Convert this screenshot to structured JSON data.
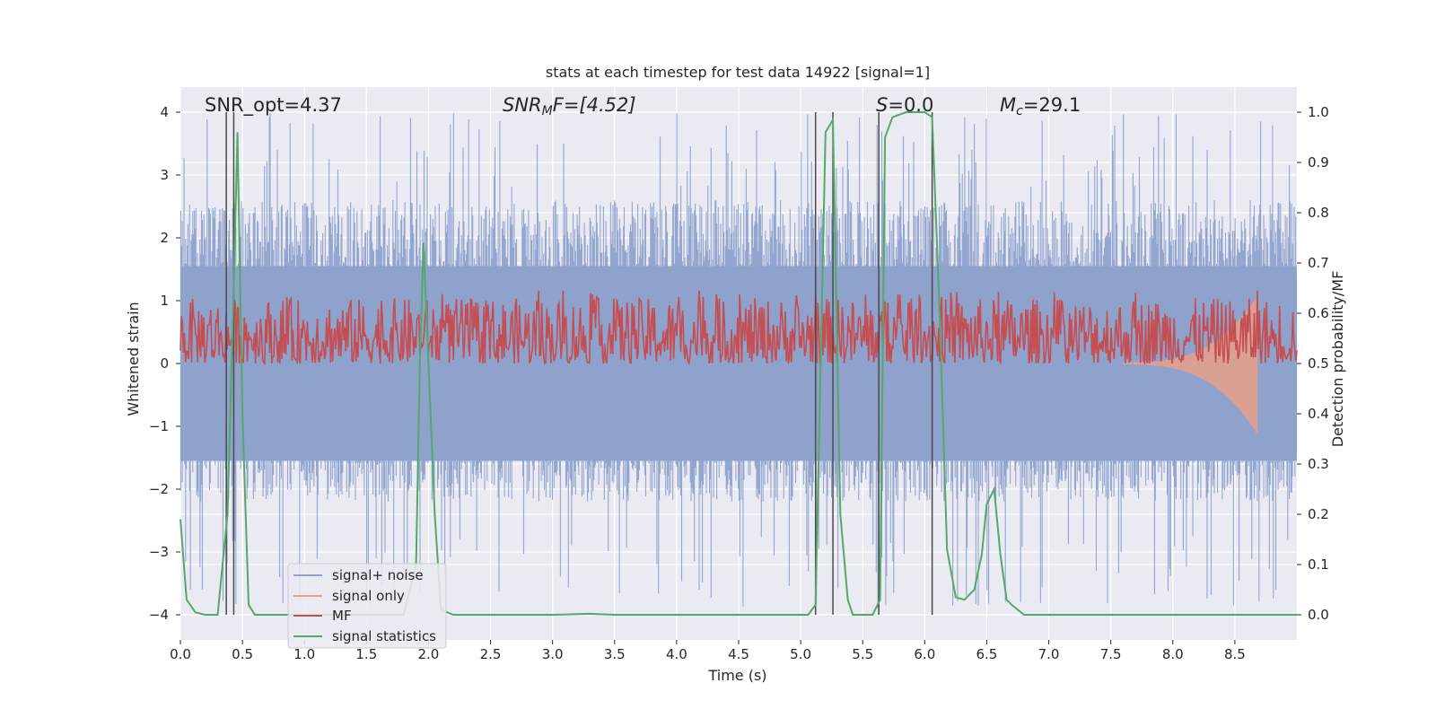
{
  "chart_data": {
    "type": "line",
    "title": "stats at each timestep for test data 14922 [signal=1]",
    "xlabel": "Time (s)",
    "ylabel_left": "Whitened strain",
    "ylabel_right": "Detection probability/MF",
    "xlim": [
      0,
      9.0
    ],
    "ylim_left": [
      -4.4,
      4.4
    ],
    "ylim_right": [
      -0.05,
      1.05
    ],
    "x_ticks": [
      "0.0",
      "0.5",
      "1.0",
      "1.5",
      "2.0",
      "2.5",
      "3.0",
      "3.5",
      "4.0",
      "4.5",
      "5.0",
      "5.5",
      "6.0",
      "6.5",
      "7.0",
      "7.5",
      "8.0",
      "8.5"
    ],
    "x_tick_values": [
      0,
      0.5,
      1,
      1.5,
      2,
      2.5,
      3,
      3.5,
      4,
      4.5,
      5,
      5.5,
      6,
      6.5,
      7,
      7.5,
      8,
      8.5
    ],
    "y_ticks_left": [
      "4",
      "3",
      "2",
      "1",
      "0",
      "−1",
      "−2",
      "−3",
      "−4"
    ],
    "y_tick_values_left": [
      4,
      3,
      2,
      1,
      0,
      -1,
      -2,
      -3,
      -4
    ],
    "y_ticks_right": [
      "1.0",
      "0.9",
      "0.8",
      "0.7",
      "0.6",
      "0.5",
      "0.4",
      "0.3",
      "0.2",
      "0.1",
      "0.0"
    ],
    "y_tick_values_right": [
      1.0,
      0.9,
      0.8,
      0.7,
      0.6,
      0.5,
      0.4,
      0.3,
      0.2,
      0.1,
      0.0
    ],
    "annotations": {
      "snr_opt": "SNR_opt=4.37",
      "snr_mf_prefix": "SNR",
      "snr_mf_sub": "M",
      "snr_mf_suffix": "F=[4.52]",
      "s_value_prefix": "S",
      "s_value_suffix": "=0.0",
      "mc_prefix": "M",
      "mc_sub": "c",
      "mc_suffix": "=29.1"
    },
    "legend": {
      "placement": "lower-left",
      "entries": [
        "signal+ noise",
        "signal only",
        "MF",
        "signal statistics"
      ]
    },
    "series": [
      {
        "name": "signal+ noise",
        "color": "#8ea2cc",
        "axis": "left",
        "envelope": [
          -2.2,
          2.6
        ],
        "peak_extremes": [
          -3.9,
          4.0
        ]
      },
      {
        "name": "signal only",
        "color": "#e8a088",
        "axis": "left",
        "t_peak": 8.68,
        "peak_value": [
          -1.0,
          1.15
        ]
      },
      {
        "name": "MF",
        "color": "#c44e52",
        "axis": "right",
        "range": [
          0.5,
          0.63
        ],
        "peak_max": 0.645
      },
      {
        "name": "signal statistics",
        "color": "#55a868",
        "axis": "right",
        "x": [
          0,
          0.05,
          0.12,
          0.2,
          0.3,
          0.38,
          0.43,
          0.46,
          0.5,
          0.55,
          0.6,
          1.5,
          1.8,
          1.9,
          1.93,
          1.96,
          2.0,
          2.05,
          2.1,
          2.2,
          3.0,
          3.3,
          3.5,
          4.9,
          5.06,
          5.12,
          5.2,
          5.26,
          5.32,
          5.38,
          5.42,
          5.5,
          5.58,
          5.64,
          5.68,
          5.74,
          5.85,
          6.0,
          6.06,
          6.12,
          6.18,
          6.25,
          6.32,
          6.4,
          6.46,
          6.5,
          6.56,
          6.61,
          6.66,
          6.7,
          6.8,
          7.5,
          8.0,
          9.0
        ],
        "y": [
          0.19,
          0.03,
          0.005,
          0.0,
          0.0,
          0.2,
          0.65,
          0.96,
          0.4,
          0.02,
          0.0,
          0.0,
          0.0,
          0.1,
          0.5,
          0.74,
          0.5,
          0.2,
          0.01,
          0.0,
          0.0,
          0.002,
          0.0,
          0.0,
          0.0,
          0.02,
          0.96,
          0.985,
          0.2,
          0.03,
          0.0,
          0.0,
          0.0,
          0.03,
          0.95,
          0.99,
          1.0,
          1.0,
          0.99,
          0.6,
          0.13,
          0.035,
          0.03,
          0.05,
          0.12,
          0.22,
          0.25,
          0.12,
          0.03,
          0.02,
          0.0,
          0.0,
          0.0,
          0.0
        ]
      }
    ],
    "vertical_markers": [
      0.37,
      0.43,
      5.12,
      5.26,
      5.63,
      6.06
    ]
  }
}
